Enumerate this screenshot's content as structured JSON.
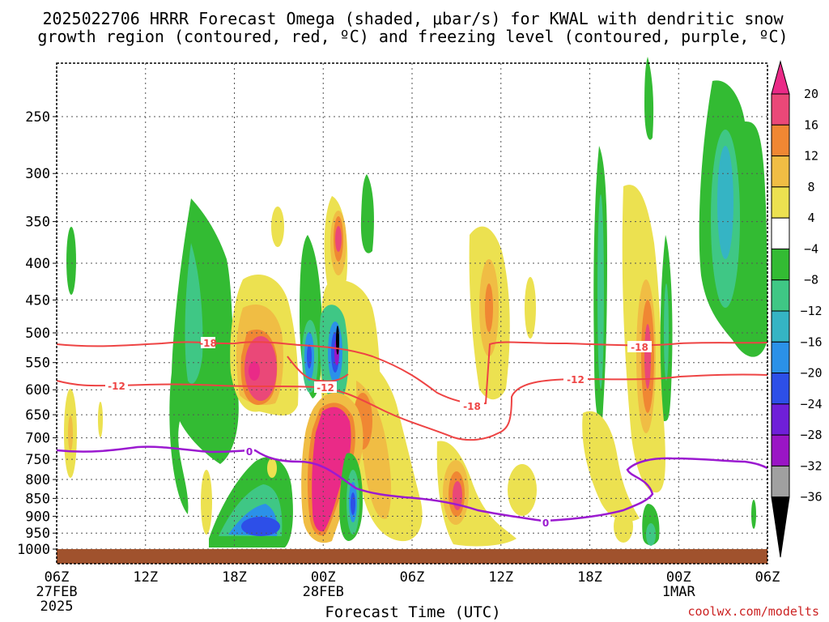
{
  "chart_data": {
    "type": "heatmap",
    "title_line1": "2025022706 HRRR Forecast Omega (shaded, μbar/s) for KWAL with dendritic snow",
    "title_line2": "growth region (contoured, red, ºC) and freezing level (contoured, purple, ºC)",
    "xlabel": "Forecast Time (UTC)",
    "credit": "coolwx.com/modelts",
    "y_ticks": [
      250,
      300,
      350,
      400,
      450,
      500,
      550,
      600,
      650,
      700,
      750,
      800,
      850,
      900,
      950,
      1000
    ],
    "x_ticks": [
      {
        "hour": 0,
        "label": "06Z",
        "sub1": "27FEB",
        "sub2": "2025"
      },
      {
        "hour": 6,
        "label": "12Z",
        "sub1": "",
        "sub2": ""
      },
      {
        "hour": 12,
        "label": "18Z",
        "sub1": "",
        "sub2": ""
      },
      {
        "hour": 18,
        "label": "00Z",
        "sub1": "28FEB",
        "sub2": ""
      },
      {
        "hour": 24,
        "label": "06Z",
        "sub1": "",
        "sub2": ""
      },
      {
        "hour": 30,
        "label": "12Z",
        "sub1": "",
        "sub2": ""
      },
      {
        "hour": 36,
        "label": "18Z",
        "sub1": "",
        "sub2": ""
      },
      {
        "hour": 42,
        "label": "00Z",
        "sub1": "1MAR",
        "sub2": ""
      },
      {
        "hour": 48,
        "label": "06Z",
        "sub1": "",
        "sub2": ""
      }
    ],
    "colorbar": {
      "labels": [
        "20",
        "16",
        "12",
        "8",
        "4",
        "−4",
        "−8",
        "−12",
        "−16",
        "−20",
        "−24",
        "−28",
        "−32",
        "−36"
      ],
      "colors": [
        "#ea4878",
        "#f08733",
        "#f0bd44",
        "#ece150",
        "#ffffff",
        "#33bb33",
        "#3fc785",
        "#35b4c4",
        "#2b91e8",
        "#2d4fe8",
        "#6f1fd9",
        "#9a15c5",
        "#a0a0a0",
        "#000000"
      ],
      "top_color": "#ea2a87"
    },
    "contours": {
      "dgz_labels": [
        "-18",
        "-12",
        "-12",
        "-18",
        "-12",
        "-18"
      ],
      "freezing_labels": [
        "0",
        "0"
      ],
      "dgz_color": "#ee4444",
      "freezing_color": "#9b1ad0"
    },
    "ground_color": "#a0522d"
  }
}
